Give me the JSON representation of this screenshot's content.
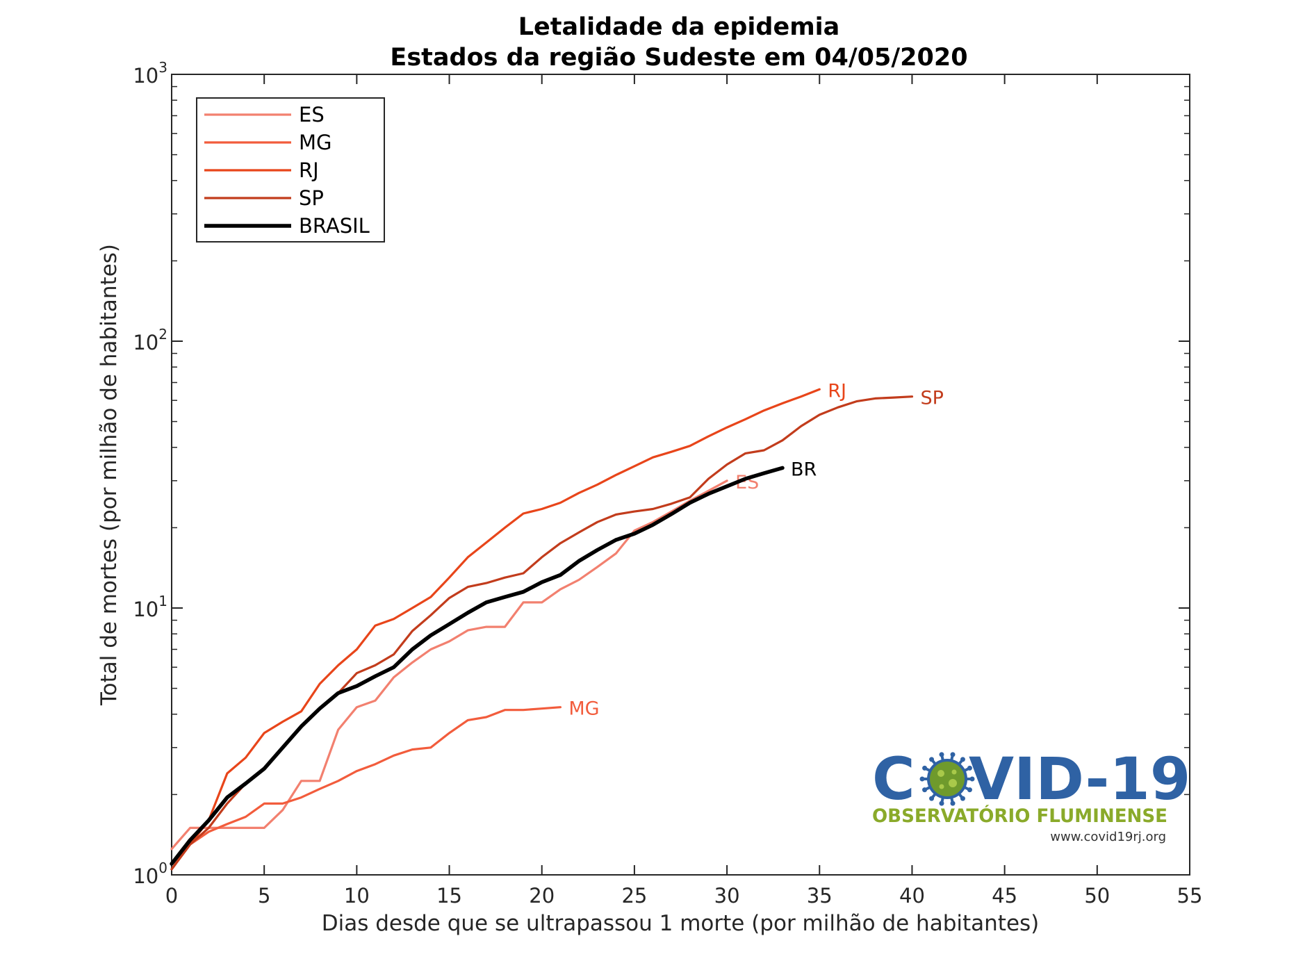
{
  "chart_data": {
    "type": "line",
    "title": "Letalidade da epidemia",
    "subtitle": "Estados da região Sudeste em 04/05/2020",
    "xlabel": "Dias desde que se ultrapassou 1 morte (por milhão de habitantes)",
    "ylabel": "Total de mortes (por milhão de habitantes)",
    "xlim": [
      0,
      55
    ],
    "ylim": [
      1,
      1000
    ],
    "yscale": "log",
    "x_ticks": [
      0,
      5,
      10,
      15,
      20,
      25,
      30,
      35,
      40,
      45,
      50,
      55
    ],
    "y_ticks": [
      {
        "base": "10",
        "exp": "0",
        "value": 1
      },
      {
        "base": "10",
        "exp": "1",
        "value": 10
      },
      {
        "base": "10",
        "exp": "2",
        "value": 100
      },
      {
        "base": "10",
        "exp": "3",
        "value": 1000
      }
    ],
    "grid": false,
    "legend_position": "top-left",
    "series": [
      {
        "name": "ES",
        "end_label": "ES",
        "color": "#f2806f",
        "width": "normal",
        "x": [
          0,
          1,
          2,
          3,
          4,
          5,
          6,
          7,
          8,
          9,
          10,
          11,
          12,
          13,
          14,
          15,
          16,
          17,
          18,
          19,
          20,
          21,
          22,
          23,
          24,
          25,
          26,
          27,
          28,
          29,
          30
        ],
        "y": [
          1.25,
          1.5,
          1.5,
          1.5,
          1.5,
          1.5,
          1.75,
          2.25,
          2.25,
          3.5,
          4.25,
          4.5,
          5.5,
          6.25,
          7,
          7.5,
          8.25,
          8.5,
          8.5,
          10.5,
          10.5,
          11.75,
          12.75,
          14.25,
          16,
          19.5,
          21,
          23,
          25.25,
          27.5,
          30
        ]
      },
      {
        "name": "MG",
        "end_label": "MG",
        "color": "#f25c3c",
        "width": "normal",
        "x": [
          0,
          1,
          2,
          3,
          4,
          5,
          6,
          7,
          8,
          9,
          10,
          11,
          12,
          13,
          14,
          15,
          16,
          17,
          18,
          19,
          20,
          21
        ],
        "y": [
          1.05,
          1.3,
          1.45,
          1.55,
          1.65,
          1.85,
          1.85,
          1.95,
          2.1,
          2.25,
          2.45,
          2.6,
          2.8,
          2.95,
          3,
          3.4,
          3.8,
          3.9,
          4.15,
          4.15,
          4.2,
          4.25
        ]
      },
      {
        "name": "RJ",
        "end_label": "RJ",
        "color": "#e8451a",
        "width": "normal",
        "x": [
          0,
          1,
          2,
          3,
          4,
          5,
          6,
          7,
          8,
          9,
          10,
          11,
          12,
          13,
          14,
          15,
          16,
          17,
          18,
          19,
          20,
          21,
          22,
          23,
          24,
          25,
          26,
          27,
          28,
          29,
          30,
          31,
          32,
          33,
          34,
          35
        ],
        "y": [
          1.05,
          1.3,
          1.6,
          2.4,
          2.75,
          3.4,
          3.75,
          4.1,
          5.2,
          6.1,
          7,
          8.6,
          9.1,
          10,
          11,
          13,
          15.5,
          17.6,
          20,
          22.6,
          23.5,
          24.8,
          27,
          29,
          31.5,
          34,
          36.7,
          38.5,
          40.5,
          44,
          47.5,
          51,
          55,
          58.5,
          62,
          66
        ]
      },
      {
        "name": "SP",
        "end_label": "SP",
        "color": "#c23c1c",
        "width": "normal",
        "x": [
          0,
          1,
          2,
          3,
          4,
          5,
          6,
          7,
          8,
          9,
          10,
          11,
          12,
          13,
          14,
          15,
          16,
          17,
          18,
          19,
          20,
          21,
          22,
          23,
          24,
          25,
          26,
          27,
          28,
          29,
          30,
          31,
          32,
          33,
          34,
          35,
          36,
          37,
          38,
          39,
          40
        ],
        "y": [
          1.05,
          1.3,
          1.5,
          1.85,
          2.2,
          2.5,
          3,
          3.6,
          4.2,
          4.8,
          5.7,
          6.1,
          6.7,
          8.2,
          9.4,
          10.9,
          12,
          12.4,
          13,
          13.5,
          15.5,
          17.5,
          19.2,
          21,
          22.4,
          23,
          23.5,
          24.6,
          26,
          30.5,
          34.5,
          38,
          39,
          42.5,
          48,
          53,
          56.5,
          59.5,
          61,
          61.5,
          62
        ]
      },
      {
        "name": "BRASIL",
        "end_label": "BR",
        "color": "#000000",
        "width": "thick",
        "x": [
          0,
          1,
          2,
          3,
          4,
          5,
          6,
          7,
          8,
          9,
          10,
          11,
          12,
          13,
          14,
          15,
          16,
          17,
          18,
          19,
          20,
          21,
          22,
          23,
          24,
          25,
          26,
          27,
          28,
          29,
          30,
          31,
          32,
          33
        ],
        "y": [
          1.1,
          1.35,
          1.6,
          1.95,
          2.2,
          2.5,
          3,
          3.6,
          4.2,
          4.8,
          5.1,
          5.55,
          6,
          7,
          7.9,
          8.7,
          9.6,
          10.5,
          11,
          11.5,
          12.5,
          13.3,
          15,
          16.5,
          18,
          19,
          20.5,
          22.5,
          24.8,
          26.8,
          28.6,
          30.5,
          32,
          33.5
        ]
      }
    ]
  },
  "logo": {
    "big_left": "C",
    "big_right": "VID-19",
    "subtitle": "OBSERVATÓRIO FLUMINENSE",
    "url": "www.covid19rj.org"
  }
}
